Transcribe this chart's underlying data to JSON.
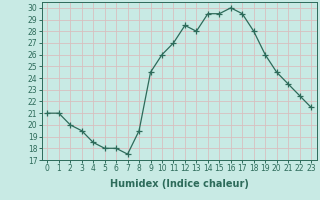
{
  "x": [
    0,
    1,
    2,
    3,
    4,
    5,
    6,
    7,
    8,
    9,
    10,
    11,
    12,
    13,
    14,
    15,
    16,
    17,
    18,
    19,
    20,
    21,
    22,
    23
  ],
  "y": [
    21,
    21,
    20,
    19.5,
    18.5,
    18,
    18,
    17.5,
    19.5,
    24.5,
    26,
    27,
    28.5,
    28,
    29.5,
    29.5,
    30,
    29.5,
    28,
    26,
    24.5,
    23.5,
    22.5,
    21.5
  ],
  "line_color": "#2d6b5a",
  "marker": "+",
  "marker_size": 4,
  "marker_color": "#2d6b5a",
  "bg_color": "#c8eae4",
  "grid_color": "#d8bfbf",
  "xlabel": "Humidex (Indice chaleur)",
  "xlim": [
    -0.5,
    23.5
  ],
  "ylim": [
    17,
    30.5
  ],
  "yticks": [
    17,
    18,
    19,
    20,
    21,
    22,
    23,
    24,
    25,
    26,
    27,
    28,
    29,
    30
  ],
  "xtick_labels": [
    "0",
    "1",
    "2",
    "3",
    "4",
    "5",
    "6",
    "7",
    "8",
    "9",
    "10",
    "11",
    "12",
    "13",
    "14",
    "15",
    "16",
    "17",
    "18",
    "19",
    "20",
    "21",
    "22",
    "23"
  ],
  "tick_fontsize": 5.5,
  "label_fontsize": 7
}
